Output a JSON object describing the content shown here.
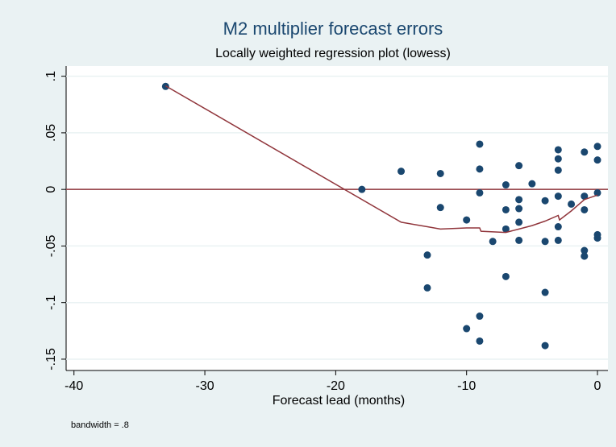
{
  "chart_data": {
    "type": "scatter",
    "title": "M2 multiplier forecast errors",
    "subtitle": "Locally weighted regression plot (lowess)",
    "x_label": "Forecast lead (months)",
    "note": "bandwidth = .8",
    "xlim": [
      -40.6,
      0.8
    ],
    "ylim": [
      -0.16,
      0.109
    ],
    "xticks": [
      -40,
      -30,
      -20,
      -10,
      0
    ],
    "yticks": [
      {
        "value": -0.15,
        "label": "-.15"
      },
      {
        "value": -0.1,
        "label": "-.1"
      },
      {
        "value": -0.05,
        "label": "-.05"
      },
      0,
      {
        "value": 0.05,
        "label": ".05"
      },
      {
        "value": 0.1,
        "label": ".1"
      }
    ],
    "grid": true,
    "reference_line": 0,
    "reference_color": "#90353b",
    "series": [
      {
        "color": "#1a476f",
        "x": [
          -33,
          -18,
          -15,
          -13,
          -13,
          -12,
          -12,
          -10,
          -10,
          -9,
          -9,
          -9,
          -9,
          -9,
          -8,
          -7,
          -7,
          -7,
          -7,
          -6,
          -6,
          -6,
          -6,
          -6,
          -5,
          -4,
          -4,
          -4,
          -4,
          -3,
          -3,
          -3,
          -3,
          -3,
          -3,
          -2,
          -1,
          -1,
          -1,
          -1,
          -1,
          0,
          0,
          0,
          0,
          0
        ],
        "values": [
          0.091,
          0,
          0.016,
          -0.058,
          -0.087,
          0.014,
          -0.016,
          -0.027,
          -0.123,
          0.04,
          0.018,
          -0.003,
          -0.112,
          -0.134,
          -0.046,
          0.004,
          -0.018,
          -0.035,
          -0.077,
          0.021,
          -0.009,
          -0.017,
          -0.029,
          -0.045,
          0.005,
          -0.01,
          -0.046,
          -0.091,
          -0.138,
          0.035,
          0.027,
          0.017,
          -0.006,
          -0.033,
          -0.045,
          -0.013,
          0.033,
          -0.006,
          -0.018,
          -0.054,
          -0.059,
          0.038,
          0.026,
          -0.003,
          -0.04,
          -0.043
        ]
      },
      {
        "type": "line",
        "color": "#90353b",
        "x": [
          -33,
          -15,
          -13,
          -12,
          -10,
          -9,
          -8.9,
          -7,
          -6,
          -5,
          -4,
          -3,
          -2.9,
          -2,
          -1,
          0
        ],
        "values": [
          0.0915,
          -0.029,
          -0.033,
          -0.035,
          -0.034,
          -0.034,
          -0.037,
          -0.038,
          -0.035,
          -0.032,
          -0.028,
          -0.023,
          -0.027,
          -0.019,
          -0.009,
          -0.005
        ]
      }
    ]
  }
}
